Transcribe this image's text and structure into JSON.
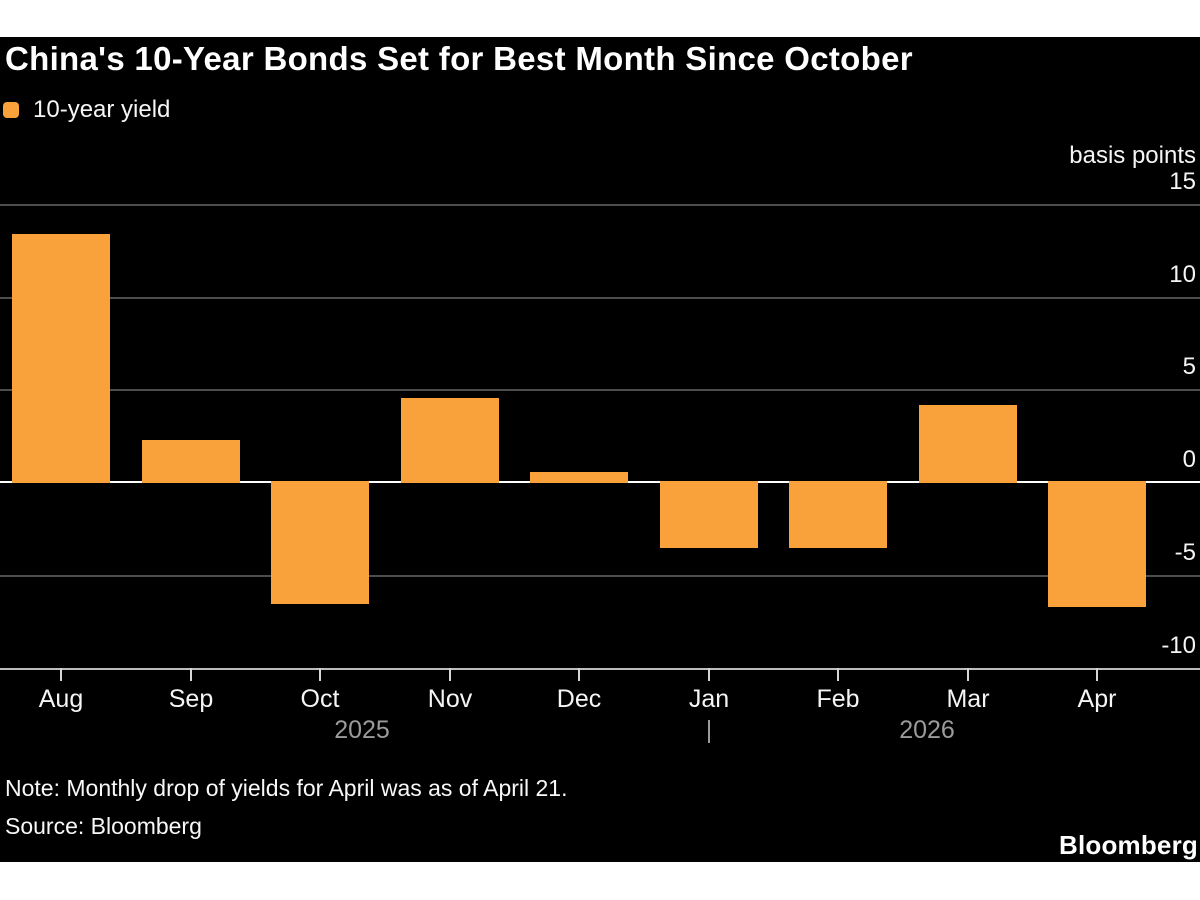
{
  "footer": {
    "note": "Note: Monthly drop of yields for April was as of April 21.",
    "source": "Source: Bloomberg",
    "logo": "Bloomberg"
  },
  "chart_data": {
    "type": "bar",
    "title": "China's 10-Year Bonds Set for Best Month Since October",
    "legend": [
      {
        "label": "10-year yield",
        "color": "#F9A13B"
      }
    ],
    "unit_label": "basis points",
    "categories": [
      "Aug",
      "Sep",
      "Oct",
      "Nov",
      "Dec",
      "Jan",
      "Feb",
      "Mar",
      "Apr"
    ],
    "values": [
      13.4,
      2.3,
      -6.5,
      4.6,
      0.6,
      -3.5,
      -3.5,
      4.2,
      -6.7
    ],
    "yticks": [
      15,
      10,
      5,
      0,
      -5,
      -10
    ],
    "ylim": [
      -11.7,
      17
    ],
    "grid": true,
    "legend_position": "top-left",
    "x_axis_years": {
      "left": "2025",
      "separator": "|",
      "right": "2026"
    },
    "colors": {
      "bar": "#F9A13B",
      "background": "#000000",
      "grid": "#4d4d4d",
      "zero_line": "#ffffff",
      "axis_line": "#bdbdbd",
      "tick": "#d6d6d6",
      "year_label": "#9b9b9b",
      "text": "#f5f5f5"
    }
  }
}
